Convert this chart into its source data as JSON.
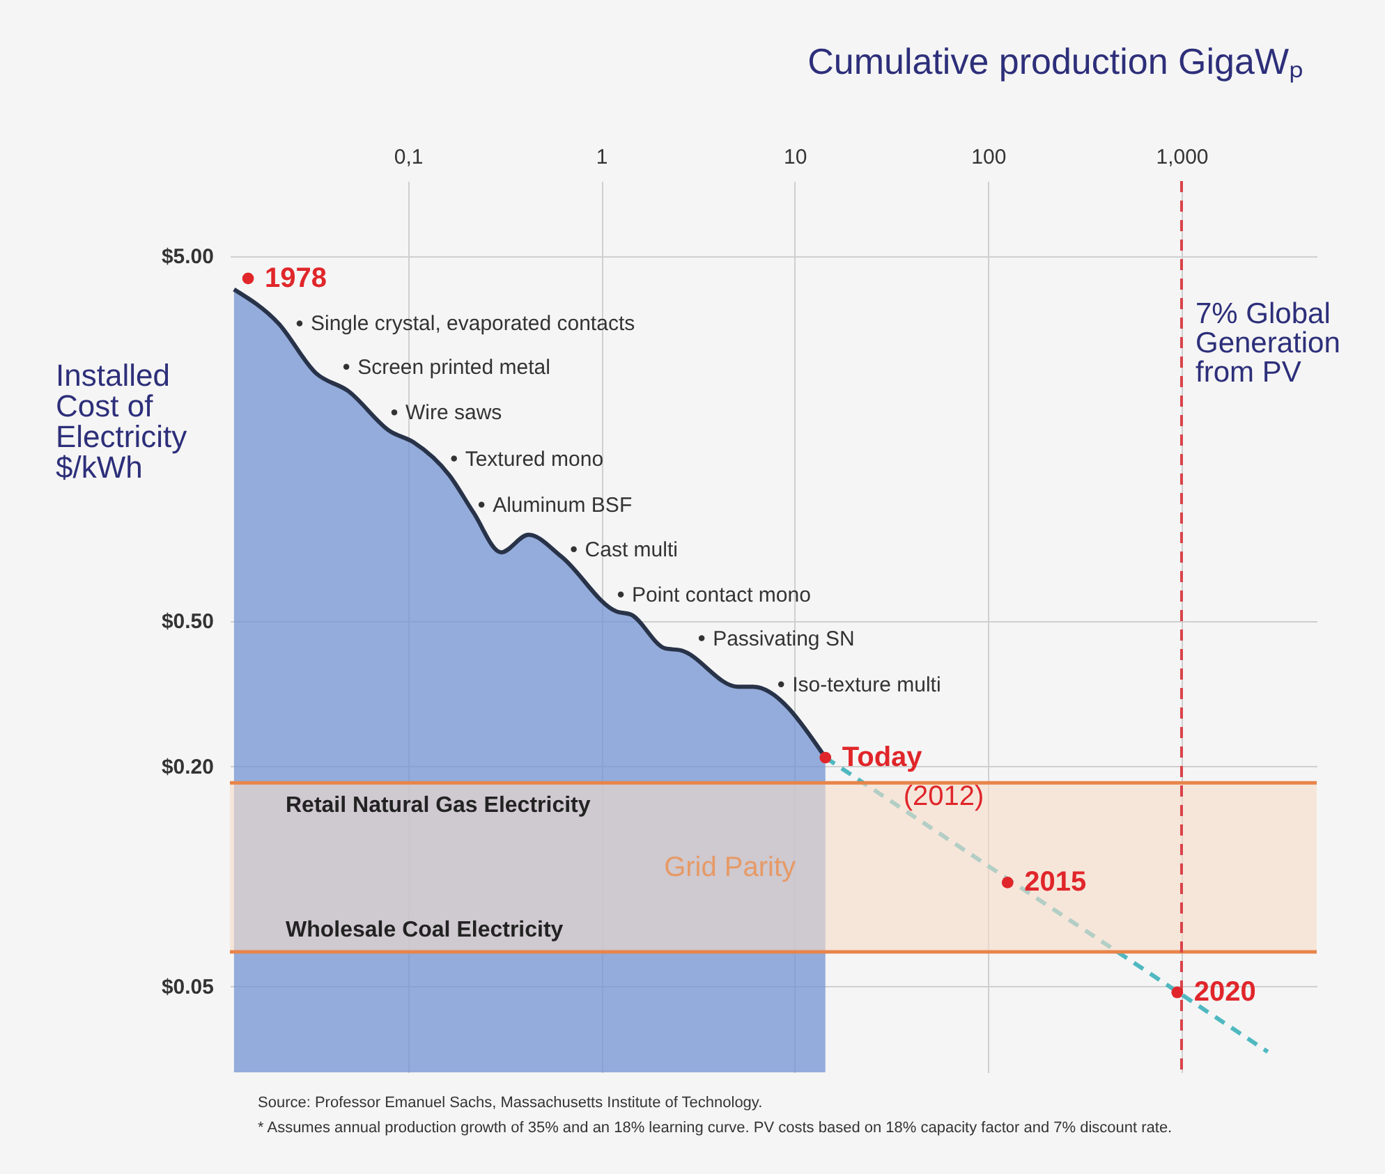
{
  "chart_data": {
    "type": "area",
    "xlabel": "Cumulative production GigaWₚ",
    "ylabel": "Installed Cost of Electricity $/kWh",
    "log": "xy",
    "grid": true,
    "xlim": [
      0.012,
      5000
    ],
    "xticks": [
      {
        "value": 0.1,
        "label": "0,1"
      },
      1,
      10,
      100,
      {
        "value": 1000,
        "label": "1,000"
      }
    ],
    "ylim": [
      0.029,
      8
    ],
    "yticks": [
      {
        "value": 5,
        "label": "$5.00"
      },
      {
        "value": 0.5,
        "label": "$0.50"
      },
      {
        "value": 0.2,
        "label": "$0.20"
      },
      {
        "value": 0.05,
        "label": "$0.05"
      }
    ],
    "series": [
      {
        "color": "#7393d2",
        "x": [
          0.0126,
          0.0214,
          0.0335,
          0.049,
          0.081,
          0.107,
          0.164,
          0.218,
          0.303,
          0.42,
          0.62,
          1.2,
          1.42,
          2.14,
          2.57,
          5.07,
          6.08,
          14.4
        ],
        "values": [
          4.04,
          3.26,
          2.38,
          2.13,
          1.65,
          1.54,
          1.25,
          0.99,
          0.77,
          0.86,
          0.75,
          0.53,
          0.52,
          0.42,
          0.415,
          0.33,
          0.33,
          0.211
        ]
      },
      {
        "type": "line",
        "color": "#4fb8c0",
        "line_style": "dashed",
        "x": [
          14.4,
          2790
        ],
        "values": [
          0.211,
          0.033
        ]
      },
      {
        "type": "scatter",
        "color": "#e0262a",
        "marker": "circle",
        "x": [
          0.0149,
          14.4,
          126,
          950
        ],
        "values": [
          4.33,
          0.211,
          0.096,
          0.048
        ]
      }
    ],
    "bands": [
      {
        "axis": "y",
        "from": 0.062,
        "to": 0.18,
        "label": "Grid Parity",
        "color": "#f6dcc8"
      }
    ],
    "ref_lines": [
      {
        "axis": "y",
        "value": 0.18,
        "label": "Retail Natural Gas Electricity",
        "color": "#e8844a"
      },
      {
        "axis": "y",
        "value": 0.062,
        "label": "Wholesale Coal Electricity",
        "color": "#e8844a"
      },
      {
        "axis": "x",
        "value": 1000,
        "label": "7% Global Generation from PV",
        "color": "#d9434a",
        "line_style": "dashed"
      }
    ],
    "annotations": [
      {
        "text": "1978",
        "x": 0.0149,
        "y": 4.33
      },
      {
        "text": "Single crystal, evaporated contacts",
        "x": 0.0275,
        "y": 3.26
      },
      {
        "text": "Screen printed metal",
        "x": 0.048,
        "y": 2.48
      },
      {
        "text": "Wire saws",
        "x": 0.085,
        "y": 1.86
      },
      {
        "text": "Textured  mono",
        "x": 0.173,
        "y": 1.39
      },
      {
        "text": "Aluminum BSF",
        "x": 0.24,
        "y": 1.04
      },
      {
        "text": "Cast multi",
        "x": 0.72,
        "y": 0.785
      },
      {
        "text": "Point contact mono",
        "x": 1.26,
        "y": 0.59
      },
      {
        "text": "Passivating SN",
        "x": 3.3,
        "y": 0.448
      },
      {
        "text": "Iso-texture multi",
        "x": 8.5,
        "y": 0.335
      },
      {
        "text": "Today",
        "x": 14.4,
        "y": 0.211
      },
      {
        "text": "(2012)",
        "x": 14.4,
        "y": 0.211
      },
      {
        "text": "2015",
        "x": 126,
        "y": 0.096
      },
      {
        "text": "2020",
        "x": 950,
        "y": 0.048
      },
      "Source: Professor Emanuel Sachs, Massachusetts Institute of Technology.",
      "* Assumes annual production growth of 35% and an 18% learning curve. PV costs based on 18% capacity factor and 7% discount rate."
    ]
  }
}
